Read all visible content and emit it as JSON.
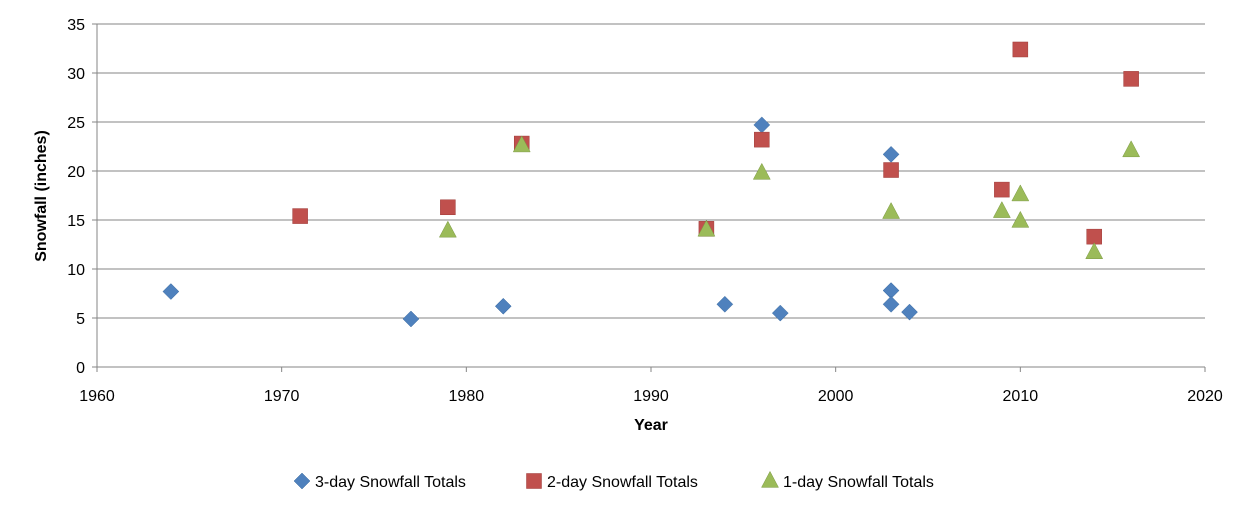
{
  "chart_data": {
    "type": "scatter",
    "title": "",
    "xlabel": "Year",
    "ylabel": "Snowfall (inches)",
    "xlim": [
      1960,
      2020
    ],
    "ylim": [
      0,
      35
    ],
    "x_ticks": [
      "1960",
      "1970",
      "1980",
      "1990",
      "2000",
      "2010",
      "2020"
    ],
    "y_ticks": [
      "0",
      "5",
      "10",
      "15",
      "20",
      "25",
      "30",
      "35"
    ],
    "grid": "horizontal",
    "legend_position": "bottom",
    "series": [
      {
        "name": "3-day Snowfall Totals",
        "marker": "diamond",
        "color": "#4F81BD",
        "points": [
          {
            "x": 1964,
            "y": 7.7
          },
          {
            "x": 1977,
            "y": 4.9
          },
          {
            "x": 1982,
            "y": 6.2
          },
          {
            "x": 1994,
            "y": 6.4
          },
          {
            "x": 1996,
            "y": 24.7
          },
          {
            "x": 1997,
            "y": 5.5
          },
          {
            "x": 2003,
            "y": 21.7
          },
          {
            "x": 2003,
            "y": 7.8
          },
          {
            "x": 2003,
            "y": 6.4
          },
          {
            "x": 2004,
            "y": 5.6
          }
        ]
      },
      {
        "name": "2-day Snowfall Totals",
        "marker": "square",
        "color": "#C0504D",
        "points": [
          {
            "x": 1971,
            "y": 15.4
          },
          {
            "x": 1979,
            "y": 16.3
          },
          {
            "x": 1983,
            "y": 22.8
          },
          {
            "x": 1993,
            "y": 14.1
          },
          {
            "x": 1996,
            "y": 23.2
          },
          {
            "x": 2003,
            "y": 20.1
          },
          {
            "x": 2009,
            "y": 18.1
          },
          {
            "x": 2010,
            "y": 32.4
          },
          {
            "x": 2014,
            "y": 13.3
          },
          {
            "x": 2016,
            "y": 29.4
          }
        ]
      },
      {
        "name": "1-day Snowfall Totals",
        "marker": "triangle",
        "color": "#9BBB59",
        "points": [
          {
            "x": 1979,
            "y": 13.9
          },
          {
            "x": 1983,
            "y": 22.6
          },
          {
            "x": 1993,
            "y": 14.0
          },
          {
            "x": 1996,
            "y": 19.8
          },
          {
            "x": 2003,
            "y": 15.8
          },
          {
            "x": 2009,
            "y": 15.9
          },
          {
            "x": 2010,
            "y": 17.6
          },
          {
            "x": 2010,
            "y": 14.9
          },
          {
            "x": 2014,
            "y": 11.7
          },
          {
            "x": 2016,
            "y": 22.1
          }
        ]
      }
    ]
  }
}
